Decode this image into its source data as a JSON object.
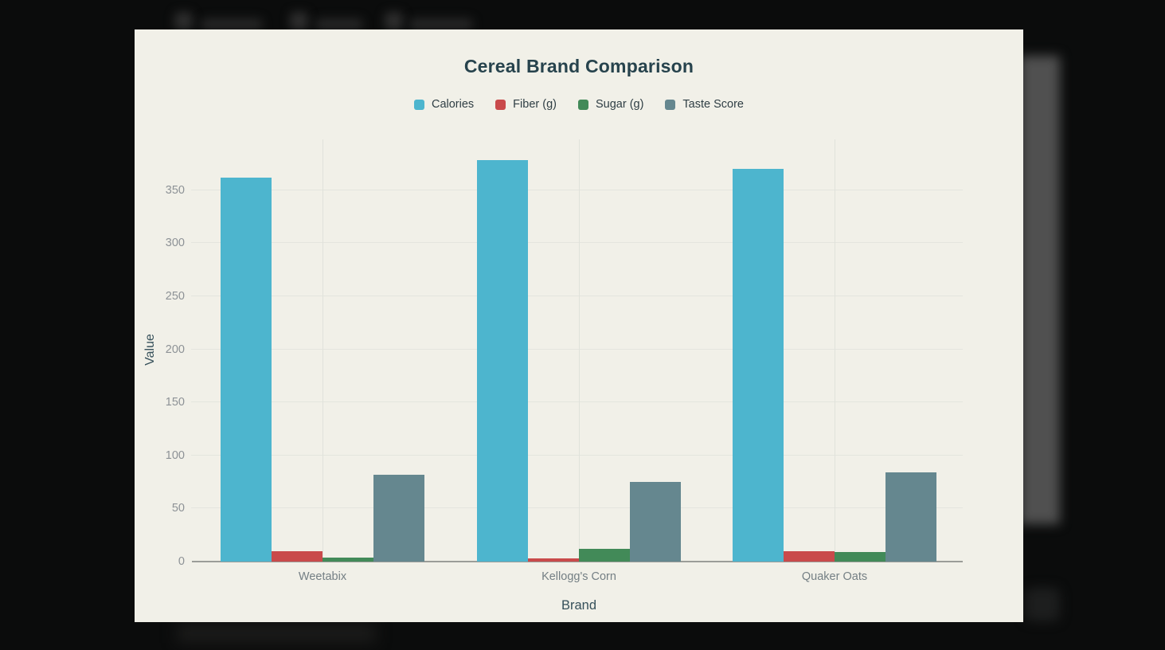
{
  "colors": {
    "page_background": "#0b0c0c",
    "panel_background": "#f1f0e8",
    "title_text": "#27434d",
    "legend_text": "#2f3e44",
    "ytick_text": "#8d9296",
    "category_text": "#747f84",
    "axis_title_text": "#36505a",
    "horizontal_grid": "#e4e5de",
    "vertical_grid": "#e0e2db",
    "axis_line": "#9b9d99"
  },
  "chart_data": {
    "type": "bar",
    "title": "Cereal Brand Comparison",
    "xlabel": "Brand",
    "ylabel": "Value",
    "categories": [
      "Weetabix",
      "Kellogg's Corn",
      "Quaker Oats"
    ],
    "series": [
      {
        "name": "Calories",
        "color": "#4db5ce",
        "values": [
          362,
          378,
          370
        ]
      },
      {
        "name": "Fiber (g)",
        "color": "#c94a4b",
        "values": [
          10,
          3,
          10
        ]
      },
      {
        "name": "Sugar (g)",
        "color": "#428a58",
        "values": [
          4,
          12,
          9
        ]
      },
      {
        "name": "Taste Score",
        "color": "#65878f",
        "values": [
          82,
          75,
          84
        ]
      }
    ],
    "ylim": [
      0,
      400
    ],
    "yticks": [
      0,
      50,
      100,
      150,
      200,
      250,
      300,
      350
    ],
    "grid": true,
    "legend_position": "top"
  }
}
